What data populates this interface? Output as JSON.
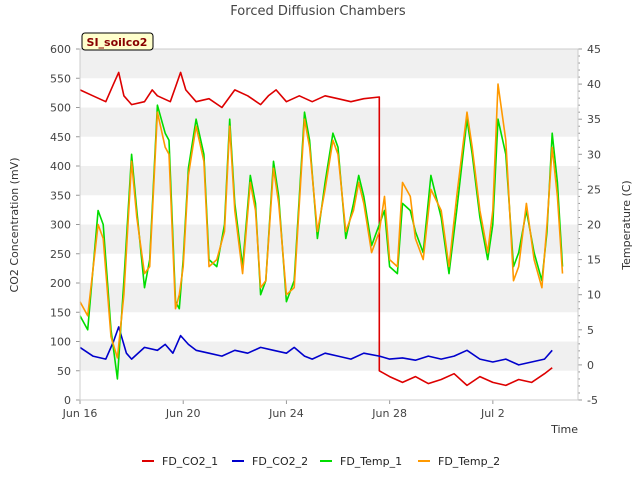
{
  "chart_data": {
    "type": "line",
    "title": "Forced Diffusion Chambers",
    "site_label": "SI_soilco2",
    "xlabel": "Time",
    "ylabel_left": "CO2 Concentration (mV)",
    "ylabel_right": "Temperature (C)",
    "x_range_days": [
      0,
      19.3
    ],
    "ylim_left": [
      0,
      600
    ],
    "ylim_right": [
      -5,
      45
    ],
    "x_ticks": [
      {
        "day": 0,
        "label": "Jun 16"
      },
      {
        "day": 4,
        "label": "Jun 20"
      },
      {
        "day": 8,
        "label": "Jun 24"
      },
      {
        "day": 12,
        "label": "Jun 28"
      },
      {
        "day": 16,
        "label": "Jul 2"
      }
    ],
    "y_ticks_left": [
      0,
      50,
      100,
      150,
      200,
      250,
      300,
      350,
      400,
      450,
      500,
      550,
      600
    ],
    "y_ticks_right": [
      -5,
      0,
      5,
      10,
      15,
      20,
      25,
      30,
      35,
      40,
      45
    ],
    "grid": "horizontal bands",
    "legend_position": "bottom",
    "series": [
      {
        "name": "FD_CO2_1",
        "axis": "left",
        "color": "#dd0000",
        "points": [
          [
            0,
            530
          ],
          [
            0.5,
            520
          ],
          [
            1,
            510
          ],
          [
            1.3,
            540
          ],
          [
            1.5,
            560
          ],
          [
            1.7,
            520
          ],
          [
            2,
            505
          ],
          [
            2.5,
            510
          ],
          [
            2.8,
            530
          ],
          [
            3,
            520
          ],
          [
            3.5,
            510
          ],
          [
            3.7,
            535
          ],
          [
            3.9,
            560
          ],
          [
            4.1,
            530
          ],
          [
            4.5,
            510
          ],
          [
            5,
            515
          ],
          [
            5.5,
            500
          ],
          [
            6,
            530
          ],
          [
            6.5,
            520
          ],
          [
            7,
            505
          ],
          [
            7.3,
            520
          ],
          [
            7.6,
            530
          ],
          [
            8,
            510
          ],
          [
            8.5,
            520
          ],
          [
            9,
            510
          ],
          [
            9.5,
            520
          ],
          [
            10,
            515
          ],
          [
            10.5,
            510
          ],
          [
            11,
            515
          ],
          [
            11.6,
            518
          ],
          [
            11.6,
            50
          ],
          [
            12,
            40
          ],
          [
            12.5,
            30
          ],
          [
            13,
            40
          ],
          [
            13.5,
            28
          ],
          [
            14,
            35
          ],
          [
            14.5,
            45
          ],
          [
            15,
            25
          ],
          [
            15.5,
            40
          ],
          [
            16,
            30
          ],
          [
            16.5,
            25
          ],
          [
            17,
            35
          ],
          [
            17.5,
            30
          ],
          [
            18,
            45
          ],
          [
            18.3,
            55
          ]
        ]
      },
      {
        "name": "FD_CO2_2",
        "axis": "left",
        "color": "#0000cc",
        "points": [
          [
            0,
            90
          ],
          [
            0.5,
            75
          ],
          [
            1,
            70
          ],
          [
            1.3,
            100
          ],
          [
            1.5,
            125
          ],
          [
            1.8,
            80
          ],
          [
            2,
            70
          ],
          [
            2.5,
            90
          ],
          [
            3,
            85
          ],
          [
            3.3,
            95
          ],
          [
            3.6,
            80
          ],
          [
            3.9,
            110
          ],
          [
            4.2,
            95
          ],
          [
            4.5,
            85
          ],
          [
            5,
            80
          ],
          [
            5.5,
            75
          ],
          [
            6,
            85
          ],
          [
            6.5,
            80
          ],
          [
            7,
            90
          ],
          [
            7.5,
            85
          ],
          [
            8,
            80
          ],
          [
            8.3,
            90
          ],
          [
            8.7,
            75
          ],
          [
            9,
            70
          ],
          [
            9.5,
            80
          ],
          [
            10,
            75
          ],
          [
            10.5,
            70
          ],
          [
            11,
            80
          ],
          [
            11.6,
            75
          ],
          [
            12,
            70
          ],
          [
            12.5,
            72
          ],
          [
            13,
            68
          ],
          [
            13.5,
            75
          ],
          [
            14,
            70
          ],
          [
            14.5,
            75
          ],
          [
            15,
            85
          ],
          [
            15.5,
            70
          ],
          [
            16,
            65
          ],
          [
            16.5,
            70
          ],
          [
            17,
            60
          ],
          [
            17.5,
            65
          ],
          [
            18,
            70
          ],
          [
            18.3,
            85
          ]
        ]
      },
      {
        "name": "FD_Temp_1",
        "axis": "right",
        "color": "#00dd00",
        "points": [
          [
            0,
            7
          ],
          [
            0.3,
            5
          ],
          [
            0.7,
            22
          ],
          [
            0.9,
            20
          ],
          [
            1.2,
            5
          ],
          [
            1.45,
            -2
          ],
          [
            1.7,
            12
          ],
          [
            2,
            30
          ],
          [
            2.2,
            22
          ],
          [
            2.5,
            11
          ],
          [
            2.7,
            15
          ],
          [
            3,
            37
          ],
          [
            3.3,
            33
          ],
          [
            3.45,
            32
          ],
          [
            3.7,
            9
          ],
          [
            3.85,
            8
          ],
          [
            4,
            15
          ],
          [
            4.2,
            28
          ],
          [
            4.5,
            35
          ],
          [
            4.8,
            30
          ],
          [
            5,
            15
          ],
          [
            5.3,
            14
          ],
          [
            5.6,
            20
          ],
          [
            5.8,
            35
          ],
          [
            6,
            23
          ],
          [
            6.3,
            14
          ],
          [
            6.6,
            27
          ],
          [
            6.8,
            23
          ],
          [
            7,
            10
          ],
          [
            7.2,
            12
          ],
          [
            7.5,
            29
          ],
          [
            7.7,
            24
          ],
          [
            8,
            9
          ],
          [
            8.3,
            12
          ],
          [
            8.7,
            36
          ],
          [
            8.9,
            32
          ],
          [
            9.2,
            18
          ],
          [
            9.5,
            26
          ],
          [
            9.8,
            33
          ],
          [
            10,
            31
          ],
          [
            10.3,
            18
          ],
          [
            10.6,
            23
          ],
          [
            10.8,
            27
          ],
          [
            11,
            24
          ],
          [
            11.3,
            17
          ],
          [
            11.6,
            20
          ],
          [
            11.8,
            22
          ],
          [
            12,
            14
          ],
          [
            12.3,
            13
          ],
          [
            12.5,
            23
          ],
          [
            12.8,
            22
          ],
          [
            13,
            19
          ],
          [
            13.3,
            16
          ],
          [
            13.6,
            27
          ],
          [
            14,
            21
          ],
          [
            14.3,
            13
          ],
          [
            14.6,
            22
          ],
          [
            15,
            35
          ],
          [
            15.2,
            30
          ],
          [
            15.5,
            21
          ],
          [
            15.8,
            15
          ],
          [
            16,
            20
          ],
          [
            16.2,
            35
          ],
          [
            16.5,
            30
          ],
          [
            16.8,
            14
          ],
          [
            17,
            16
          ],
          [
            17.3,
            22
          ],
          [
            17.6,
            16
          ],
          [
            17.9,
            12
          ],
          [
            18.1,
            19
          ],
          [
            18.3,
            33
          ],
          [
            18.5,
            26
          ],
          [
            18.7,
            14
          ]
        ]
      },
      {
        "name": "FD_Temp_2",
        "axis": "right",
        "color": "#ff9900",
        "points": [
          [
            0,
            9
          ],
          [
            0.3,
            7
          ],
          [
            0.7,
            20
          ],
          [
            0.9,
            18
          ],
          [
            1.2,
            4
          ],
          [
            1.45,
            1
          ],
          [
            1.7,
            10
          ],
          [
            2,
            29
          ],
          [
            2.2,
            21
          ],
          [
            2.5,
            13
          ],
          [
            2.7,
            14
          ],
          [
            3,
            36
          ],
          [
            3.3,
            31
          ],
          [
            3.45,
            30
          ],
          [
            3.7,
            8
          ],
          [
            3.85,
            10
          ],
          [
            4,
            14
          ],
          [
            4.2,
            27
          ],
          [
            4.5,
            34
          ],
          [
            4.8,
            29
          ],
          [
            5,
            14
          ],
          [
            5.3,
            15
          ],
          [
            5.6,
            19
          ],
          [
            5.8,
            34
          ],
          [
            6,
            22
          ],
          [
            6.3,
            13
          ],
          [
            6.6,
            26
          ],
          [
            6.8,
            22
          ],
          [
            7,
            11
          ],
          [
            7.2,
            12
          ],
          [
            7.5,
            28
          ],
          [
            7.7,
            23
          ],
          [
            8,
            10
          ],
          [
            8.3,
            11
          ],
          [
            8.7,
            35
          ],
          [
            8.9,
            31
          ],
          [
            9.2,
            19
          ],
          [
            9.5,
            25
          ],
          [
            9.8,
            32
          ],
          [
            10,
            30
          ],
          [
            10.3,
            19
          ],
          [
            10.6,
            22
          ],
          [
            10.8,
            26
          ],
          [
            11,
            23
          ],
          [
            11.3,
            16
          ],
          [
            11.6,
            19
          ],
          [
            11.8,
            24
          ],
          [
            12,
            15
          ],
          [
            12.3,
            14
          ],
          [
            12.5,
            26
          ],
          [
            12.8,
            24
          ],
          [
            13,
            18
          ],
          [
            13.3,
            15
          ],
          [
            13.6,
            25
          ],
          [
            14,
            22
          ],
          [
            14.3,
            14
          ],
          [
            14.6,
            24
          ],
          [
            15,
            36
          ],
          [
            15.2,
            31
          ],
          [
            15.5,
            22
          ],
          [
            15.8,
            16
          ],
          [
            16,
            22
          ],
          [
            16.2,
            40
          ],
          [
            16.5,
            32
          ],
          [
            16.8,
            12
          ],
          [
            17,
            14
          ],
          [
            17.3,
            23
          ],
          [
            17.6,
            15
          ],
          [
            17.9,
            11
          ],
          [
            18.1,
            20
          ],
          [
            18.3,
            31
          ],
          [
            18.5,
            24
          ],
          [
            18.7,
            13
          ]
        ]
      }
    ]
  }
}
